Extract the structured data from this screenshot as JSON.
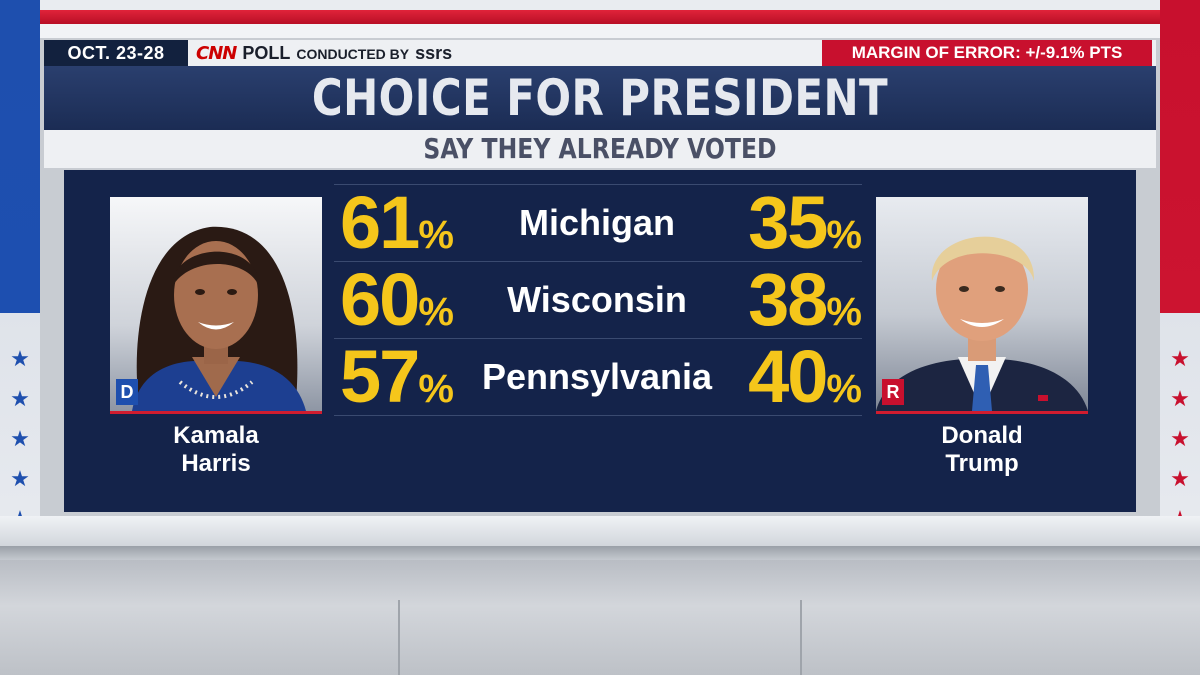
{
  "header": {
    "date_range": "OCT. 23-28",
    "network_logo": "CNN",
    "poll_label": "POLL",
    "conducted_by_label": "CONDUCTED BY",
    "pollster": "ssrs",
    "margin_of_error": "MARGIN OF ERROR: +/-9.1% PTS"
  },
  "title": "CHOICE FOR PRESIDENT",
  "subtitle": "SAY THEY ALREADY VOTED",
  "candidates": {
    "left": {
      "first_name": "Kamala",
      "last_name": "Harris",
      "party_badge": "D",
      "party_color": "#1e4fae"
    },
    "right": {
      "first_name": "Donald",
      "last_name": "Trump",
      "party_badge": "R",
      "party_color": "#c8102e"
    }
  },
  "results": [
    {
      "state": "Michigan",
      "harris": "61",
      "trump": "35"
    },
    {
      "state": "Wisconsin",
      "harris": "60",
      "trump": "38"
    },
    {
      "state": "Pennsylvania",
      "harris": "57",
      "trump": "40"
    }
  ],
  "percent_sign": "%",
  "colors": {
    "accent_yellow": "#f5c61b",
    "panel_navy": "#14234a",
    "democrat_blue": "#1e4fae",
    "republican_red": "#c8102e"
  },
  "decor": {
    "star_icon": "★"
  }
}
